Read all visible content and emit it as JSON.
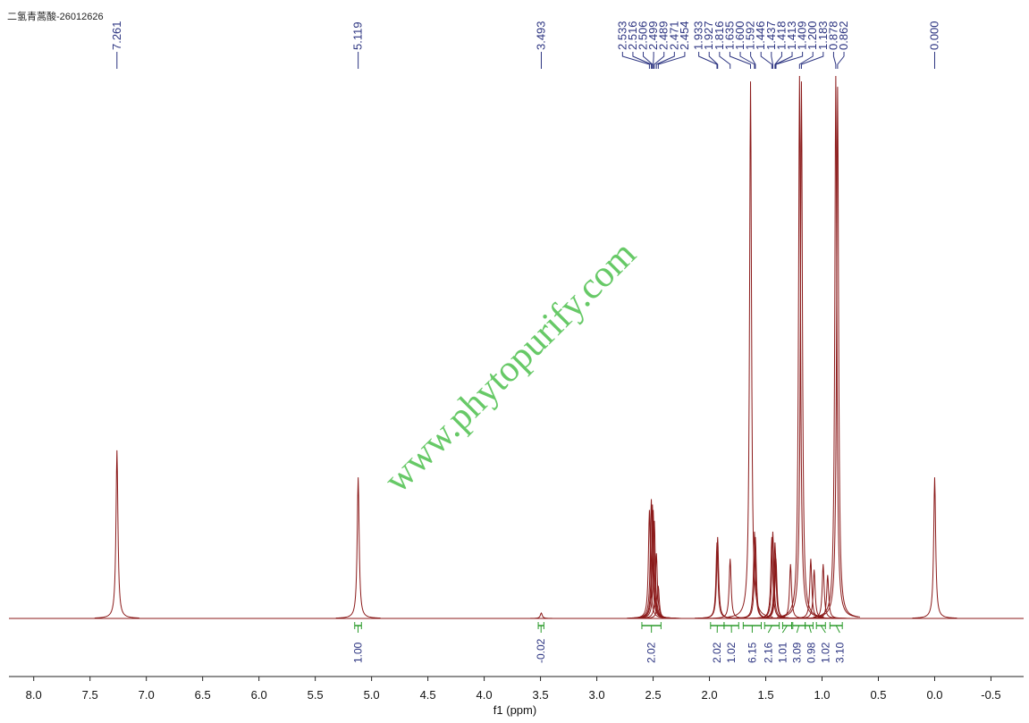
{
  "chart_data": {
    "type": "nmr",
    "title": "二氢青蒿酸-26012626",
    "x_label": "f1 (ppm)",
    "watermark": "www.phytopurify.com",
    "color": "#8b1a1a",
    "xlim": [
      8.22,
      -0.79
    ],
    "xticks": [
      {
        "value": 8,
        "label": "8.0"
      },
      7.5,
      {
        "value": 7,
        "label": "7.0"
      },
      6.5,
      {
        "value": 6,
        "label": "6.0"
      },
      5.5,
      {
        "value": 5,
        "label": "5.0"
      },
      4.5,
      {
        "value": 4,
        "label": "4.0"
      },
      3.5,
      {
        "value": 3,
        "label": "3.0"
      },
      2.5,
      {
        "value": 2,
        "label": "2.0"
      },
      1.5,
      {
        "value": 1,
        "label": "1.0"
      },
      0.5,
      {
        "value": 0,
        "label": "0.0"
      },
      -0.5
    ],
    "peaks": {
      "x": [
        7.261,
        5.119,
        3.493,
        2.533,
        2.516,
        2.506,
        2.499,
        2.489,
        2.471,
        2.454,
        1.933,
        1.927,
        1.816,
        1.635,
        1.6,
        1.592,
        1.446,
        1.437,
        1.418,
        1.413,
        1.409,
        1.28,
        1.2,
        1.183,
        1.1,
        1.07,
        0.99,
        0.95,
        0.878,
        0.862,
        0.0
      ],
      "heights": [
        31,
        26,
        1,
        20,
        22,
        21,
        20,
        18,
        12,
        6,
        14,
        15,
        11,
        99,
        16,
        15,
        15,
        16,
        14,
        12,
        11,
        10,
        100,
        99,
        11,
        9,
        10,
        8,
        100,
        98,
        26
      ],
      "labels": [
        "7.261",
        "5.119",
        "3.493",
        "2.533",
        "2.516",
        "2.506",
        "2.499",
        "2.489",
        "2.471",
        "2.454",
        "1.933",
        "1.927",
        "1.816",
        "1.635",
        "1.600",
        "1.592",
        "1.446",
        "1.437",
        "1.418",
        "1.413",
        "1.409",
        null,
        "1.200",
        "1.183",
        null,
        null,
        null,
        null,
        "0.878",
        "0.862",
        "0.000"
      ]
    },
    "integrals": {
      "from": [
        5.15,
        3.52,
        2.6,
        1.99,
        1.87,
        1.7,
        1.51,
        1.35,
        1.26,
        1.15,
        1.05,
        0.93
      ],
      "to": [
        5.09,
        3.47,
        2.43,
        1.87,
        1.74,
        1.54,
        1.38,
        1.27,
        1.15,
        1.08,
        0.97,
        0.82
      ],
      "values": [
        1,
        -0.02,
        2.02,
        2.02,
        1.02,
        6.15,
        2.16,
        1.01,
        3.09,
        0.98,
        1.02,
        3.1
      ],
      "value_labels": [
        "1.00",
        "-0.02",
        "2.02",
        "2.02",
        "1.02",
        "6.15",
        "2.16",
        "1.01",
        "3.09",
        "0.98",
        "1.02",
        "3.10"
      ]
    }
  }
}
